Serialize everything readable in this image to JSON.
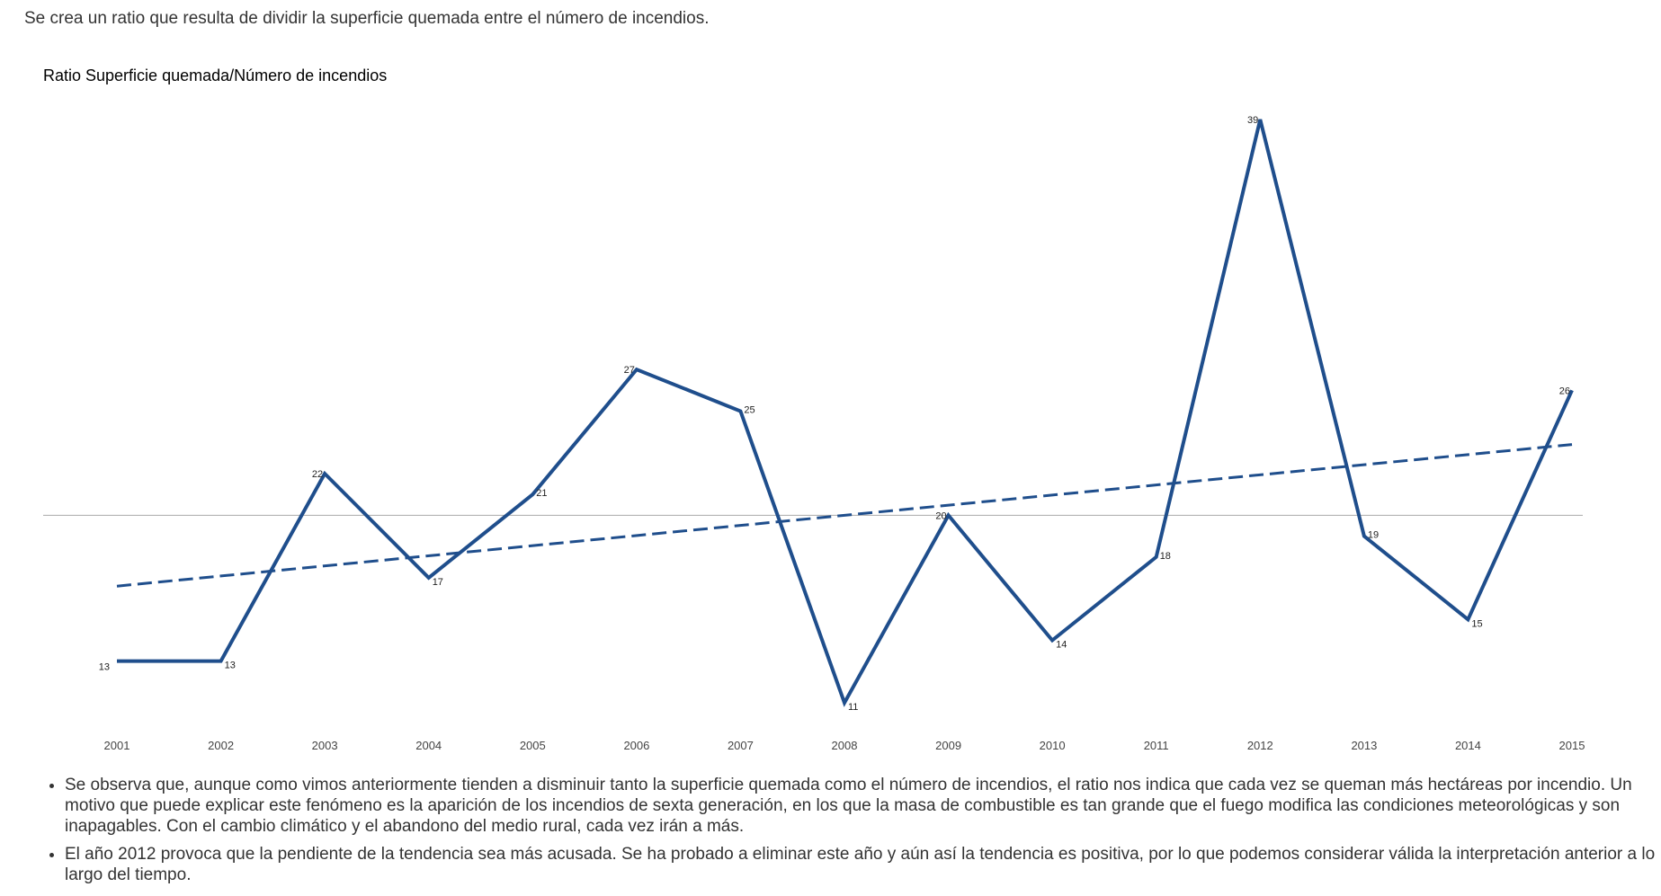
{
  "intro_text": "Se crea un ratio que resulta de dividir la superficie quemada entre el número de incendios.",
  "chart_data": {
    "type": "line",
    "title": "Ratio Superficie quemada/Número de incendios",
    "xlabel": "",
    "ylabel": "",
    "categories": [
      "2001",
      "2002",
      "2003",
      "2004",
      "2005",
      "2006",
      "2007",
      "2008",
      "2009",
      "2010",
      "2011",
      "2012",
      "2013",
      "2014",
      "2015"
    ],
    "series": [
      {
        "values": [
          13,
          13,
          22,
          17,
          21,
          27,
          25,
          11,
          20,
          14,
          18,
          39,
          19,
          15,
          26
        ],
        "color": "#1f4e8c"
      }
    ],
    "trendline": {
      "style": "dashed",
      "start_value": 16.6,
      "end_value": 23.4,
      "color": "#1f4e8c"
    },
    "ylim": [
      11,
      39
    ],
    "reference_line_value": 20,
    "grid": false,
    "legend": "none",
    "data_labels": true
  },
  "notes": [
    "Se observa que, aunque como vimos anteriormente tienden a disminuir tanto la superficie quemada como el número de incendios, el ratio nos indica que cada vez se queman más hectáreas por incendio. Un motivo que puede explicar este fenómeno es la aparición de los incendios de sexta generación, en los que la masa de combustible es tan grande que el fuego modifica las condiciones meteorológicas y son inapagables. Con el cambio climático y el abandono del medio rural, cada vez irán a más.",
    "El año 2012 provoca que la pendiente de la tendencia sea más acusada. Se ha probado a eliminar este año y aún así la tendencia es positiva, por lo que podemos considerar válida la interpretación anterior a lo largo del tiempo."
  ]
}
